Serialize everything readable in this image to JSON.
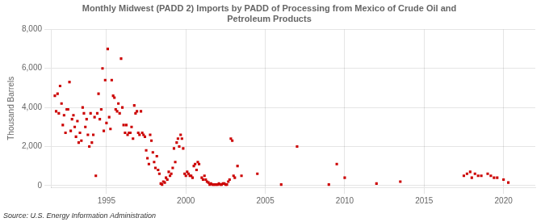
{
  "chart_data": {
    "type": "scatter",
    "title": "Monthly Midwest (PADD 2) Imports by PADD of Processing from Mexico of Crude Oil and\nPetroleum Products",
    "y_label": "Thousand Barrels",
    "annotations": [
      "Source: U.S. Energy Information Administration"
    ],
    "x": [
      1991.75,
      1991.83,
      1991.92,
      1992.0,
      1992.08,
      1992.17,
      1992.25,
      1992.33,
      1992.42,
      1992.5,
      1992.58,
      1992.67,
      1992.75,
      1992.83,
      1992.92,
      1993.0,
      1993.08,
      1993.17,
      1993.25,
      1993.33,
      1993.42,
      1993.5,
      1993.58,
      1993.67,
      1993.75,
      1993.83,
      1993.92,
      1994.0,
      1994.08,
      1994.17,
      1994.25,
      1994.33,
      1994.42,
      1994.5,
      1994.58,
      1994.67,
      1994.75,
      1994.83,
      1994.92,
      1995.0,
      1995.08,
      1995.17,
      1995.25,
      1995.33,
      1995.42,
      1995.5,
      1995.58,
      1995.67,
      1995.75,
      1995.83,
      1995.92,
      1996.0,
      1996.08,
      1996.17,
      1996.25,
      1996.33,
      1996.42,
      1996.5,
      1996.58,
      1996.67,
      1996.75,
      1996.83,
      1996.92,
      1997.0,
      1997.08,
      1997.17,
      1997.25,
      1997.33,
      1997.42,
      1997.5,
      1997.58,
      1997.67,
      1997.75,
      1997.83,
      1997.92,
      1998.0,
      1998.08,
      1998.17,
      1998.25,
      1998.33,
      1998.42,
      1998.5,
      1998.58,
      1998.67,
      1998.75,
      1998.83,
      1998.92,
      1999.0,
      1999.08,
      1999.17,
      1999.25,
      1999.33,
      1999.42,
      1999.5,
      1999.58,
      1999.67,
      1999.75,
      1999.83,
      1999.92,
      2000.0,
      2000.08,
      2000.17,
      2000.25,
      2000.33,
      2000.42,
      2000.5,
      2000.58,
      2000.67,
      2000.75,
      2000.83,
      2001.0,
      2001.08,
      2001.17,
      2001.25,
      2001.33,
      2001.42,
      2001.5,
      2001.58,
      2001.67,
      2001.75,
      2001.83,
      2001.92,
      2002.0,
      2002.08,
      2002.17,
      2002.25,
      2002.33,
      2002.42,
      2002.5,
      2002.58,
      2002.67,
      2002.75,
      2002.83,
      2002.92,
      2003.0,
      2003.08,
      2003.25,
      2003.5,
      2004.5,
      2006.0,
      2007.0,
      2009.0,
      2009.5,
      2010.0,
      2012.0,
      2013.5,
      2017.5,
      2017.7,
      2017.9,
      2018.0,
      2018.2,
      2018.4,
      2018.6,
      2019.0,
      2019.2,
      2019.4,
      2019.6,
      2020.0,
      2020.3
    ],
    "values": [
      4600,
      3800,
      4700,
      3700,
      5100,
      4200,
      3100,
      3600,
      2700,
      3900,
      3900,
      5300,
      2800,
      3400,
      3600,
      3000,
      2500,
      3300,
      2200,
      2700,
      2300,
      4000,
      3700,
      3000,
      3400,
      2600,
      2000,
      3700,
      2200,
      2600,
      3500,
      500,
      3700,
      4700,
      3400,
      3900,
      6000,
      2800,
      5400,
      3200,
      7000,
      3500,
      2900,
      5400,
      4600,
      4500,
      3900,
      3800,
      4200,
      3700,
      6500,
      4000,
      3100,
      2700,
      3100,
      2600,
      2700,
      2700,
      3000,
      2400,
      4100,
      3700,
      3800,
      2700,
      2600,
      3800,
      2700,
      2600,
      2500,
      1800,
      1400,
      1100,
      2600,
      2300,
      1700,
      1200,
      900,
      1500,
      800,
      600,
      100,
      50,
      200,
      150,
      400,
      300,
      700,
      500,
      600,
      900,
      1900,
      1200,
      2200,
      2400,
      2000,
      2600,
      2400,
      1900,
      600,
      500,
      700,
      600,
      500,
      500,
      400,
      1000,
      1100,
      800,
      1200,
      1100,
      400,
      300,
      500,
      300,
      200,
      150,
      50,
      100,
      50,
      50,
      50,
      50,
      50,
      100,
      50,
      50,
      100,
      100,
      50,
      50,
      200,
      300,
      2400,
      2300,
      500,
      400,
      1000,
      500,
      600,
      50,
      2000,
      50,
      1100,
      400,
      100,
      200,
      500,
      600,
      700,
      400,
      600,
      500,
      500,
      600,
      500,
      400,
      400,
      300,
      150
    ],
    "color": "#cc0000",
    "marker": "square",
    "xlim": [
      1991.5,
      2022.0
    ],
    "xticks": [
      1995,
      2000,
      2005,
      2010,
      2015,
      2020
    ],
    "ylim": [
      -100,
      8000
    ],
    "yticks": [
      0,
      {
        "value": 2000,
        "label": "2,000"
      },
      {
        "value": 4000,
        "label": "4,000"
      },
      {
        "value": 6000,
        "label": "6,000"
      },
      {
        "value": 8000,
        "label": "8,000"
      }
    ],
    "grid": true
  }
}
